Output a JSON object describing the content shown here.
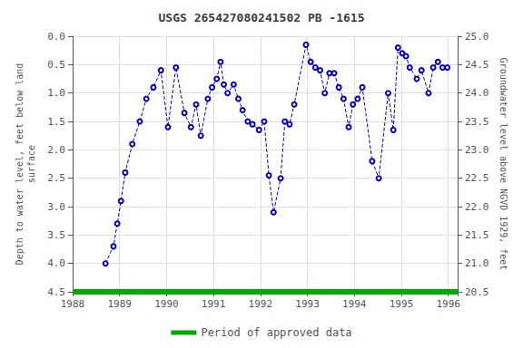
{
  "chart_data": {
    "type": "line",
    "title": "USGS 265427080241502 PB -1615",
    "ylabel": "Depth to water level, feet below land\nsurface",
    "y2label": "Groundwater level above NGVD 1929, feet",
    "xlim": [
      1988.0,
      1996.2
    ],
    "xticks": [
      1988,
      1989,
      1990,
      1991,
      1992,
      1993,
      1994,
      1995,
      1996
    ],
    "ylim": [
      4.5,
      0.0
    ],
    "yticks": [
      {
        "value": 0.0,
        "label": "0.0"
      },
      0.5,
      {
        "value": 1.0,
        "label": "1.0"
      },
      1.5,
      {
        "value": 2.0,
        "label": "2.0"
      },
      2.5,
      {
        "value": 3.0,
        "label": "3.0"
      },
      3.5,
      {
        "value": 4.0,
        "label": "4.0"
      },
      4.5
    ],
    "y2lim": [
      20.5,
      25.0
    ],
    "y2ticks": [
      {
        "value": 25.0,
        "label": "25.0"
      },
      24.5,
      {
        "value": 24.0,
        "label": "24.0"
      },
      23.5,
      {
        "value": 23.0,
        "label": "23.0"
      },
      22.5,
      {
        "value": 22.0,
        "label": "22.0"
      },
      21.5,
      {
        "value": 21.0,
        "label": "21.0"
      },
      20.5
    ],
    "grid": true,
    "legend": "bottom",
    "x": [
      1988.7,
      1988.87,
      1988.95,
      1989.03,
      1989.12,
      1989.27,
      1989.43,
      1989.57,
      1989.72,
      1989.88,
      1990.03,
      1990.2,
      1990.38,
      1990.52,
      1990.63,
      1990.73,
      1990.88,
      1990.97,
      1991.07,
      1991.15,
      1991.22,
      1991.3,
      1991.43,
      1991.53,
      1991.62,
      1991.73,
      1991.83,
      1991.97,
      1992.08,
      1992.18,
      1992.28,
      1992.43,
      1992.52,
      1992.62,
      1992.72,
      1992.97,
      1993.07,
      1993.17,
      1993.27,
      1993.37,
      1993.47,
      1993.57,
      1993.67,
      1993.77,
      1993.88,
      1993.97,
      1994.07,
      1994.17,
      1994.38,
      1994.52,
      1994.72,
      1994.83,
      1994.93,
      1995.02,
      1995.1,
      1995.18,
      1995.33,
      1995.43,
      1995.58,
      1995.68,
      1995.78,
      1995.88,
      1995.98
    ],
    "series": [
      {
        "color": "#0000cc",
        "marker": "circle",
        "line_style": "dashed",
        "values": [
          4.0,
          3.7,
          3.3,
          2.9,
          2.4,
          1.9,
          1.5,
          1.1,
          0.9,
          0.6,
          1.6,
          0.55,
          1.35,
          1.6,
          1.2,
          1.75,
          1.1,
          0.9,
          0.75,
          0.45,
          0.85,
          1.0,
          0.85,
          1.1,
          1.3,
          1.5,
          1.55,
          1.65,
          1.5,
          2.45,
          3.1,
          2.5,
          1.5,
          1.55,
          1.2,
          0.15,
          0.45,
          0.55,
          0.6,
          1.0,
          0.65,
          0.65,
          0.9,
          1.1,
          1.6,
          1.2,
          1.1,
          0.9,
          2.2,
          2.5,
          1.0,
          1.65,
          0.2,
          0.3,
          0.35,
          0.55,
          0.75,
          0.6,
          1.0,
          0.55,
          0.45,
          0.55,
          0.55
        ]
      },
      {
        "name": "Period of approved data",
        "color": "#00aa00",
        "line_style": "solid",
        "x": [
          1988.0,
          1996.2
        ],
        "values": [
          4.5,
          4.5
        ]
      }
    ]
  }
}
